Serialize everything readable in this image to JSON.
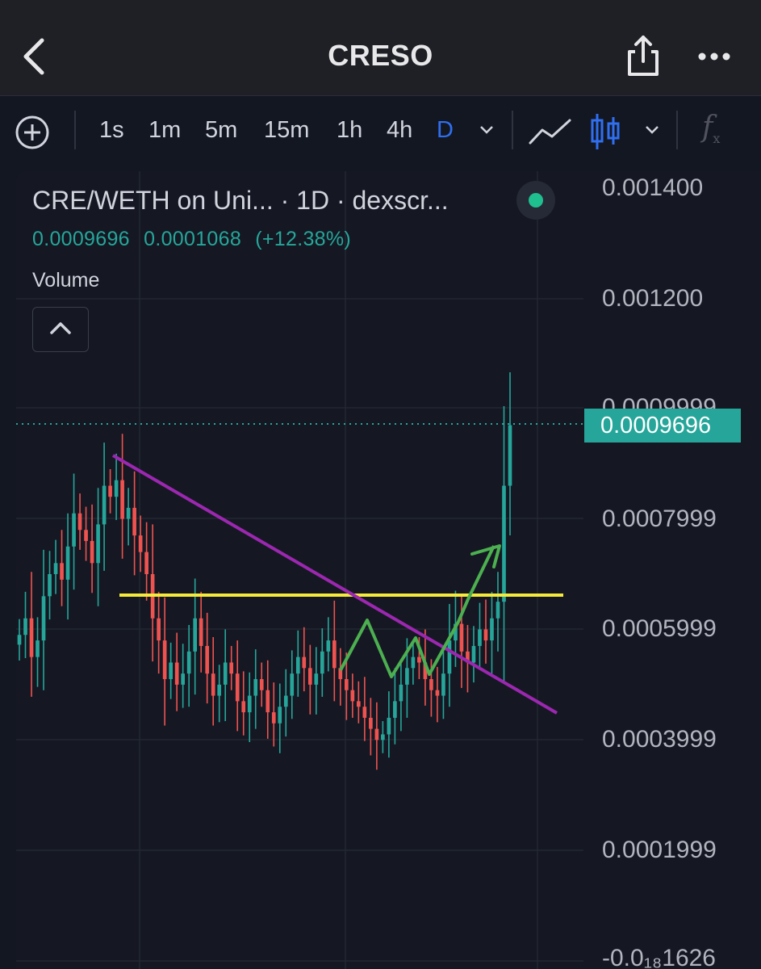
{
  "header": {
    "title": "CRESO",
    "back_icon": "chevron-left-icon",
    "share_icon": "share-icon",
    "more_icon": "more-horizontal-icon"
  },
  "toolbar": {
    "add_icon": "plus-circle-icon",
    "intervals": [
      "1s",
      "1m",
      "5m",
      "15m",
      "1h",
      "4h",
      "D"
    ],
    "active_interval": "D",
    "chart_type_line_icon": "line-chart-icon",
    "chart_type_candle_icon": "candlestick-icon",
    "indicators_label": "f",
    "indicators_sub": "x"
  },
  "legend": {
    "title": "CRE/WETH on Uni... · 1D · dexscr...",
    "last_price": "0.0009696",
    "change_abs": "0.0001068",
    "change_pct": "(+12.38%)",
    "volume_label": "Volume",
    "collapse_icon": "chevron-up-icon",
    "live_status_icon": "live-dot-icon"
  },
  "price_axis": {
    "labels": [
      "0.001400",
      "0.001200",
      "0.0009999",
      "0.0007999",
      "0.0005999",
      "0.0003999",
      "0.0001999",
      "-0.0₁₈1626"
    ],
    "current_price": "0.0009696"
  },
  "colors": {
    "up": "#26a69a",
    "down": "#ef5350",
    "trendline": "#9c27b0",
    "support": "#f5eb3b",
    "projection": "#4caf50",
    "current_price_line": "#26a69a",
    "active_interval": "#2f6ff0"
  },
  "chart_data": {
    "type": "candlestick",
    "pair": "CRE/WETH",
    "interval": "1D",
    "ylim": [
      0,
      0.0014
    ],
    "current_price": 0.0009696,
    "close_series": [
      0.00059,
      0.00062,
      0.00055,
      0.00058,
      0.00066,
      0.0007,
      0.00072,
      0.00069,
      0.00075,
      0.00081,
      0.00078,
      0.00076,
      0.00072,
      0.00079,
      0.00086,
      0.00084,
      0.00087,
      0.0008,
      0.00082,
      0.00077,
      0.00074,
      0.0007,
      0.00062,
      0.00058,
      0.00051,
      0.00054,
      0.0005,
      0.00052,
      0.00056,
      0.00062,
      0.00057,
      0.00052,
      0.00048,
      0.0005,
      0.00054,
      0.00052,
      0.00047,
      0.00045,
      0.00048,
      0.00051,
      0.00049,
      0.00045,
      0.00043,
      0.00046,
      0.00048,
      0.00052,
      0.00055,
      0.00053,
      0.0005,
      0.00052,
      0.00056,
      0.00058,
      0.00053,
      0.00051,
      0.00049,
      0.00047,
      0.00046,
      0.00044,
      0.00042,
      0.0004,
      0.00041,
      0.00044,
      0.00047,
      0.0005,
      0.00053,
      0.00055,
      0.00054,
      0.00051,
      0.00049,
      0.00048,
      0.00052,
      0.00058,
      0.00061,
      0.00056,
      0.00054,
      0.00057,
      0.0006,
      0.00058,
      0.00062,
      0.00065,
      0.00086,
      0.00096963
    ]
  }
}
